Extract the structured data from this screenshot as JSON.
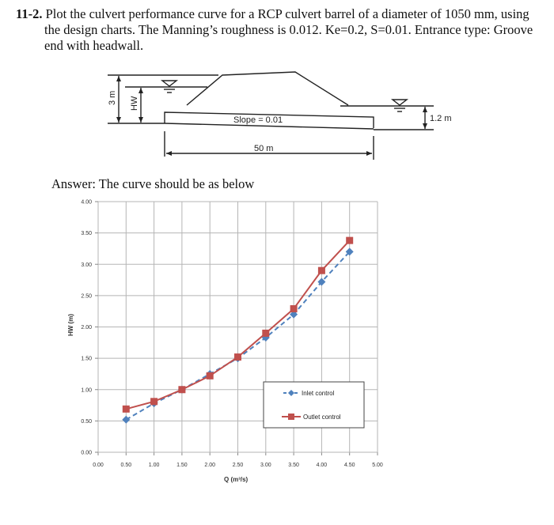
{
  "problem": {
    "number": "11-2.",
    "line1": "Plot the culvert performance curve for a RCP culvert barrel of a diameter of 1050 mm, using",
    "line2": "the design charts. The  Manning’s roughness is 0.012. Ke=0.2, S=0.01. Entrance type: Groove",
    "line3": "end with headwall."
  },
  "diagram": {
    "height_label": "3 m",
    "hw_label": "HW",
    "slope_label": "Slope = 0.01",
    "length_label": "50 m",
    "tailwater_label": "1.2 m"
  },
  "answer": {
    "text": "Answer: The curve should be as below"
  },
  "chart_data": {
    "type": "line",
    "title": "",
    "xlabel": "Q (m³/s)",
    "ylabel": "HW (m)",
    "xlim": [
      0,
      5
    ],
    "ylim": [
      0,
      4
    ],
    "grid": true,
    "legend_position": "inside-lower-right",
    "x_ticks": [
      "0.00",
      "0.50",
      "1.00",
      "1.50",
      "2.00",
      "2.50",
      "3.00",
      "3.50",
      "4.00",
      "4.50",
      "5.00"
    ],
    "y_ticks": [
      "0.00",
      "0.50",
      "1.00",
      "1.50",
      "2.00",
      "2.50",
      "3.00",
      "3.50",
      "4.00"
    ],
    "x": [
      0.5,
      1.0,
      1.5,
      2.0,
      2.5,
      3.0,
      3.5,
      4.0,
      4.5
    ],
    "series": [
      {
        "name": "Inlet control",
        "color": "#4f81bd",
        "style": "dashed",
        "marker": "diamond",
        "values": [
          0.52,
          0.78,
          1.0,
          1.25,
          1.5,
          1.83,
          2.2,
          2.72,
          3.2
        ]
      },
      {
        "name": "Outlet control",
        "color": "#c0504d",
        "style": "solid",
        "marker": "square",
        "values": [
          0.69,
          0.81,
          1.0,
          1.22,
          1.52,
          1.9,
          2.29,
          2.9,
          3.38
        ]
      }
    ]
  }
}
